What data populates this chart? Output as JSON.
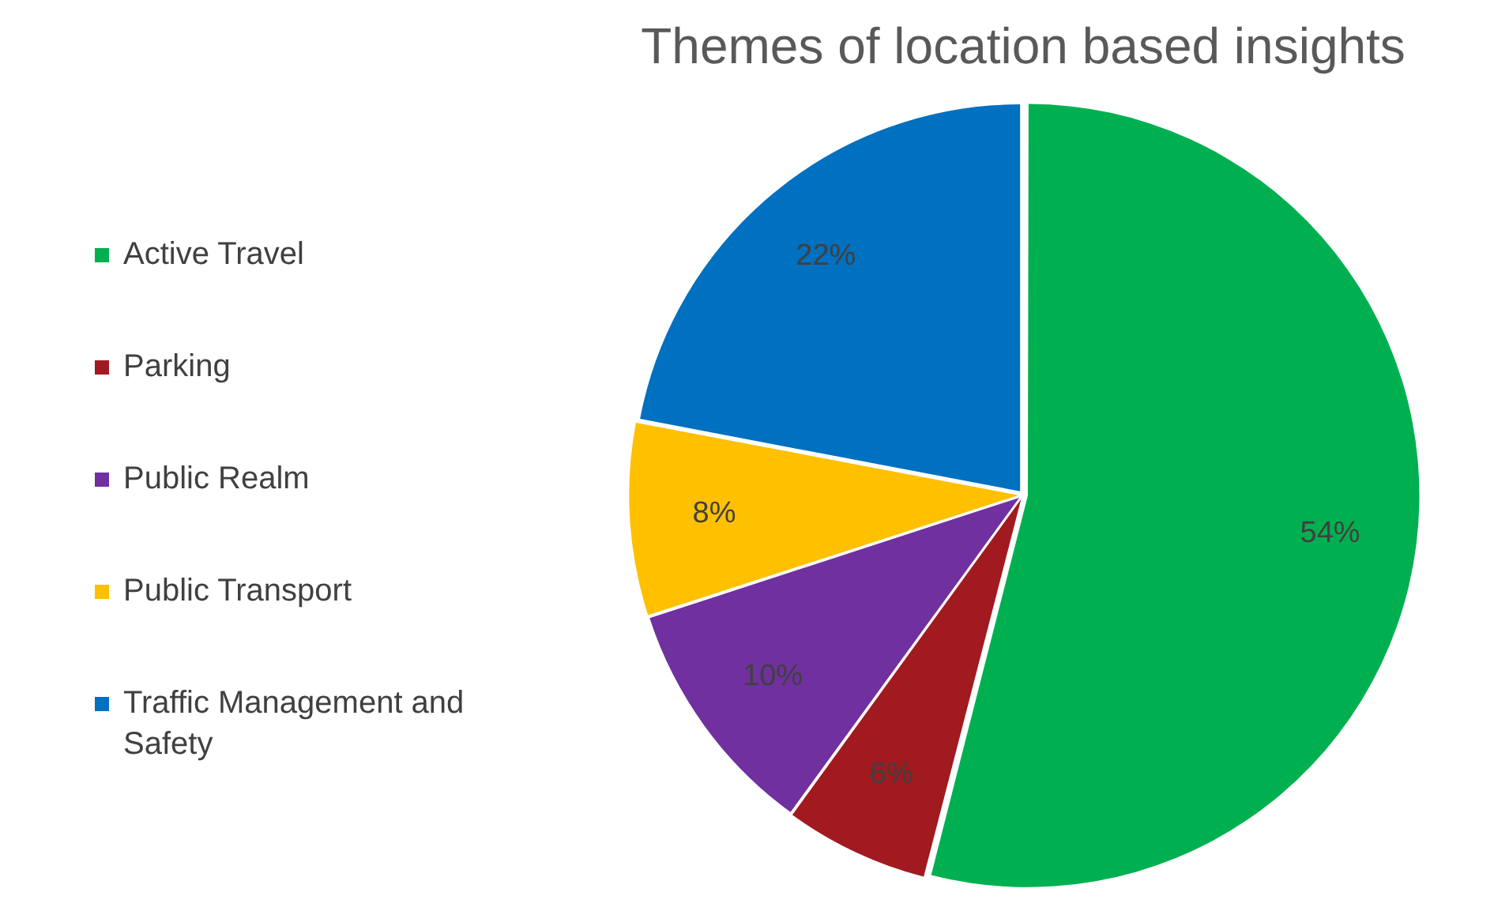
{
  "chart_data": {
    "type": "pie",
    "title": "Themes of location based insights",
    "categories": [
      "Active Travel",
      "Parking",
      "Public Realm",
      "Public Transport",
      "Traffic Management and Safety"
    ],
    "values": [
      54,
      6,
      10,
      8,
      22
    ],
    "colors": [
      "#00b050",
      "#a01a20",
      "#7030a0",
      "#ffc000",
      "#0070c0"
    ],
    "value_labels": [
      "54%",
      "6%",
      "10%",
      "8%",
      "22%"
    ],
    "legend": "left"
  }
}
